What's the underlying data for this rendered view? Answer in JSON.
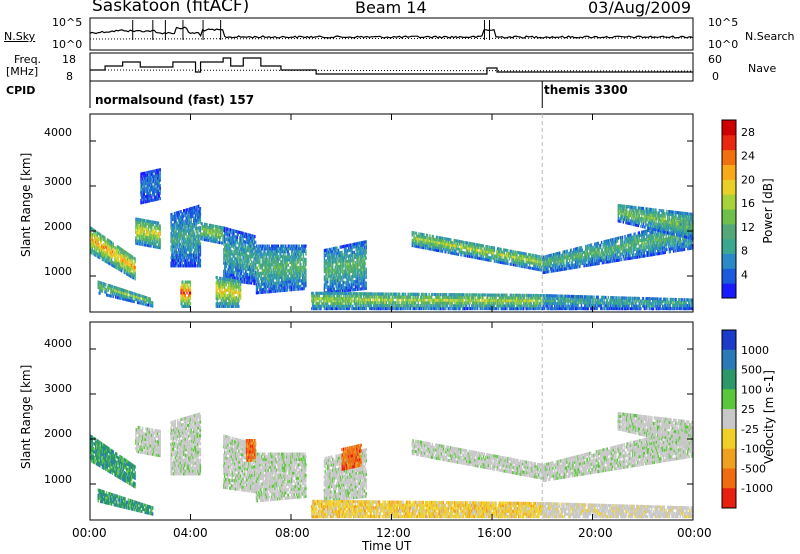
{
  "header": {
    "station": "Saskatoon (fitACF)",
    "beam": "Beam 14",
    "date": "03/Aug/2009"
  },
  "noise_panel": {
    "left_label": "N.Sky",
    "right_label": "N.Search",
    "ticks_left": [
      "10^5",
      "10^0"
    ],
    "ticks_right": [
      "10^5",
      "10^0"
    ]
  },
  "freq_panel": {
    "left_label_1": "Freq.",
    "left_label_2": "[MHz]",
    "right_label": "Nave",
    "ticks_left": [
      "18",
      "8"
    ],
    "ticks_right": [
      "60",
      "0"
    ]
  },
  "cpid": {
    "label": "CPID",
    "segments": [
      {
        "name": "normalsound (fast) 157",
        "start_hour": 0
      },
      {
        "name": "themis 3300",
        "start_hour": 18
      }
    ]
  },
  "time_axis": {
    "label": "Time UT",
    "ticks": [
      "00:00",
      "04:00",
      "08:00",
      "12:00",
      "16:00",
      "20:00",
      "00:00"
    ]
  },
  "chart_data": [
    {
      "type": "heatmap",
      "name": "power",
      "ylabel": "Slant Range [km]",
      "y_ticks": [
        "1000",
        "2000",
        "3000",
        "4000"
      ],
      "ylim": [
        200,
        4600
      ],
      "xlim": [
        0,
        24
      ],
      "colorbar": {
        "label": "Power [dB]",
        "ticks": [
          "4",
          "8",
          "12",
          "16",
          "20",
          "24",
          "28"
        ],
        "range": [
          0,
          30
        ]
      },
      "colors": [
        "#1a1aff",
        "#1a5adc",
        "#2a8ac8",
        "#3aa890",
        "#52a878",
        "#6fc04a",
        "#a8d23a",
        "#e8d028",
        "#f8a818",
        "#f07010",
        "#ea2810",
        "#d00000"
      ],
      "bands": [
        {
          "x": [
            0.0,
            1.8
          ],
          "y0": [
            2100,
            1400
          ],
          "y1": [
            1500,
            900
          ],
          "level": 22
        },
        {
          "x": [
            0.3,
            2.5
          ],
          "y0": [
            900,
            500
          ],
          "y1": [
            600,
            300
          ],
          "level": 14
        },
        {
          "x": [
            1.8,
            2.8
          ],
          "y0": [
            2300,
            2200
          ],
          "y1": [
            1700,
            1600
          ],
          "level": 18
        },
        {
          "x": [
            2.0,
            2.8
          ],
          "y0": [
            3300,
            3400
          ],
          "y1": [
            2600,
            2700
          ],
          "level": 6
        },
        {
          "x": [
            3.2,
            4.4
          ],
          "y0": [
            2400,
            2600
          ],
          "y1": [
            1200,
            1200
          ],
          "level": 10
        },
        {
          "x": [
            3.6,
            4.0
          ],
          "y0": [
            900,
            900
          ],
          "y1": [
            300,
            300
          ],
          "level": 26
        },
        {
          "x": [
            4.4,
            5.3
          ],
          "y0": [
            2200,
            2100
          ],
          "y1": [
            1800,
            1700
          ],
          "level": 16
        },
        {
          "x": [
            5.3,
            6.6
          ],
          "y0": [
            2100,
            1900
          ],
          "y1": [
            900,
            800
          ],
          "level": 10
        },
        {
          "x": [
            5.0,
            6.0
          ],
          "y0": [
            1000,
            900
          ],
          "y1": [
            300,
            300
          ],
          "level": 20
        },
        {
          "x": [
            6.6,
            8.6
          ],
          "y0": [
            1700,
            1700
          ],
          "y1": [
            600,
            700
          ],
          "level": 12
        },
        {
          "x": [
            9.3,
            11.0
          ],
          "y0": [
            1600,
            1800
          ],
          "y1": [
            600,
            700
          ],
          "level": 12
        },
        {
          "x": [
            8.8,
            18.0
          ],
          "y0": [
            650,
            600
          ],
          "y1": [
            250,
            250
          ],
          "level": 16
        },
        {
          "x": [
            12.8,
            18.0
          ],
          "y0": [
            2000,
            1450
          ],
          "y1": [
            1650,
            1100
          ],
          "level": 16
        },
        {
          "x": [
            18.0,
            24.0
          ],
          "y0": [
            1450,
            2300
          ],
          "y1": [
            1050,
            1600
          ],
          "level": 12
        },
        {
          "x": [
            18.0,
            24.0
          ],
          "y0": [
            600,
            500
          ],
          "y1": [
            250,
            250
          ],
          "level": 10
        },
        {
          "x": [
            21.0,
            24.0
          ],
          "y0": [
            2600,
            2400
          ],
          "y1": [
            2200,
            1800
          ],
          "level": 14
        }
      ]
    },
    {
      "type": "heatmap",
      "name": "velocity",
      "ylabel": "Slant Range [km]",
      "y_ticks": [
        "1000",
        "2000",
        "3000",
        "4000"
      ],
      "ylim": [
        200,
        4600
      ],
      "xlim": [
        0,
        24
      ],
      "colorbar": {
        "label": "Velocity [m s-1]",
        "ticks": [
          "1000",
          "500",
          "100",
          "25",
          "-25",
          "-100",
          "-500",
          "-1000"
        ]
      },
      "colors": [
        "#1a3cc8",
        "#2a7ab8",
        "#2a9868",
        "#5ac83a",
        "#c8c8c8",
        "#c8c8c8",
        "#f0d028",
        "#f0a020",
        "#f06c10",
        "#e82010"
      ],
      "bands": [
        {
          "x": [
            0.0,
            1.8
          ],
          "y0": [
            2100,
            1400
          ],
          "y1": [
            1500,
            900
          ],
          "cls": 2
        },
        {
          "x": [
            0.3,
            2.5
          ],
          "y0": [
            900,
            500
          ],
          "y1": [
            600,
            300
          ],
          "cls": 2
        },
        {
          "x": [
            1.8,
            2.8
          ],
          "y0": [
            2300,
            2200
          ],
          "y1": [
            1700,
            1600
          ],
          "cls": 4
        },
        {
          "x": [
            3.2,
            4.4
          ],
          "y0": [
            2400,
            2600
          ],
          "y1": [
            1200,
            1200
          ],
          "cls": 4
        },
        {
          "x": [
            5.3,
            6.6
          ],
          "y0": [
            2100,
            1900
          ],
          "y1": [
            900,
            800
          ],
          "cls": 4
        },
        {
          "x": [
            6.2,
            6.6
          ],
          "y0": [
            2000,
            2000
          ],
          "y1": [
            1500,
            1500
          ],
          "cls": 8
        },
        {
          "x": [
            6.6,
            8.6
          ],
          "y0": [
            1700,
            1700
          ],
          "y1": [
            600,
            700
          ],
          "cls": 4
        },
        {
          "x": [
            9.3,
            11.0
          ],
          "y0": [
            1600,
            1800
          ],
          "y1": [
            600,
            700
          ],
          "cls": 4
        },
        {
          "x": [
            10.0,
            10.8
          ],
          "y0": [
            1800,
            1900
          ],
          "y1": [
            1300,
            1400
          ],
          "cls": 8
        },
        {
          "x": [
            8.8,
            18.0
          ],
          "y0": [
            650,
            600
          ],
          "y1": [
            250,
            250
          ],
          "cls": 6
        },
        {
          "x": [
            12.8,
            18.0
          ],
          "y0": [
            2000,
            1450
          ],
          "y1": [
            1650,
            1100
          ],
          "cls": 4
        },
        {
          "x": [
            18.0,
            24.0
          ],
          "y0": [
            1450,
            2300
          ],
          "y1": [
            1050,
            1600
          ],
          "cls": 4
        },
        {
          "x": [
            18.0,
            24.0
          ],
          "y0": [
            600,
            500
          ],
          "y1": [
            250,
            250
          ],
          "cls": 5
        },
        {
          "x": [
            21.0,
            24.0
          ],
          "y0": [
            2600,
            2400
          ],
          "y1": [
            2200,
            1800
          ],
          "cls": 4
        }
      ]
    }
  ]
}
